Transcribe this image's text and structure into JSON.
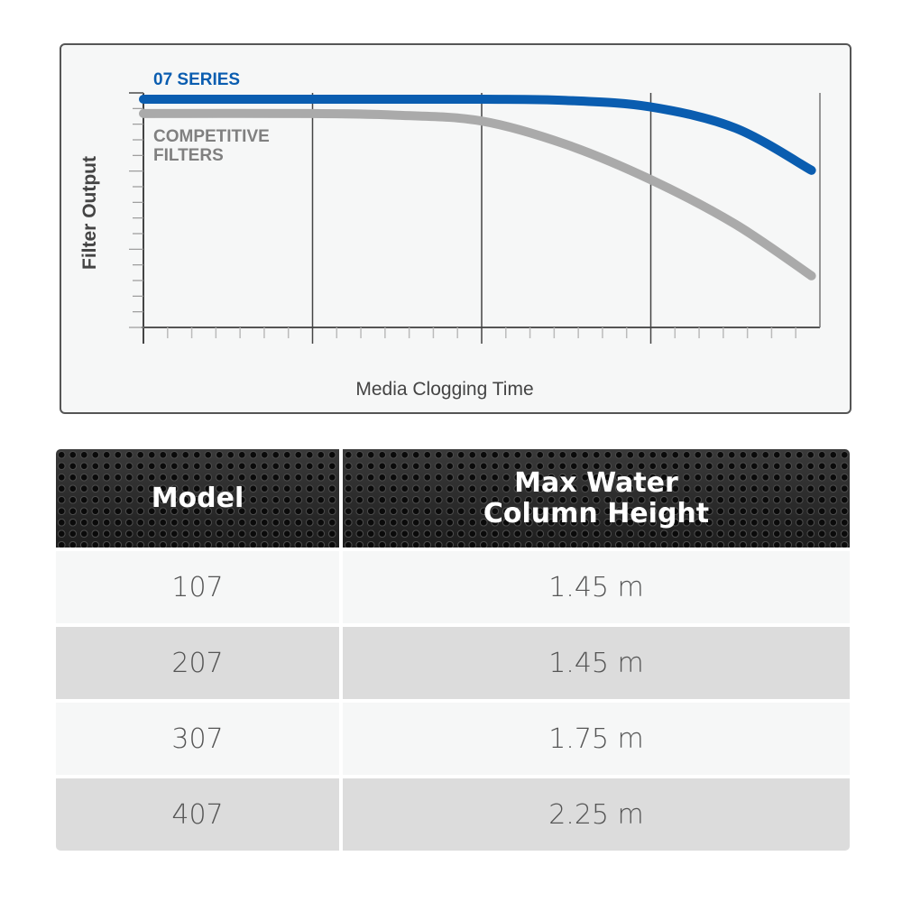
{
  "chart_data": {
    "type": "line",
    "title": "",
    "xlabel": "Media Clogging Time",
    "ylabel": "Filter Output",
    "xlim": [
      0,
      4
    ],
    "ylim": [
      0,
      100
    ],
    "x_major_ticks": [
      0,
      1,
      2,
      3,
      4
    ],
    "grid": "vertical major lines",
    "series": [
      {
        "name": "07 SERIES",
        "color": "#0a5db0",
        "x": [
          0,
          1,
          2,
          2.5,
          3,
          3.5,
          3.95
        ],
        "y": [
          97.3,
          97.3,
          97.3,
          96.8,
          94,
          85,
          67
        ]
      },
      {
        "name": "COMPETITIVE FILTERS",
        "color": "#aaaaaa",
        "x": [
          0,
          1,
          1.5,
          2,
          2.5,
          3,
          3.5,
          3.95
        ],
        "y": [
          91.2,
          91.2,
          90.5,
          88,
          78,
          63,
          44,
          22
        ]
      }
    ],
    "legend": {
      "series_label_1": "07 SERIES",
      "series_label_2_line1": "COMPETITIVE",
      "series_label_2_line2": "FILTERS"
    }
  },
  "table": {
    "headers": [
      "Model",
      "Max Water",
      "Column Height"
    ],
    "rows": [
      {
        "model": "107",
        "height": "1.45 m"
      },
      {
        "model": "207",
        "height": "1.45 m"
      },
      {
        "model": "307",
        "height": "1.75 m"
      },
      {
        "model": "407",
        "height": "2.25 m"
      }
    ]
  }
}
